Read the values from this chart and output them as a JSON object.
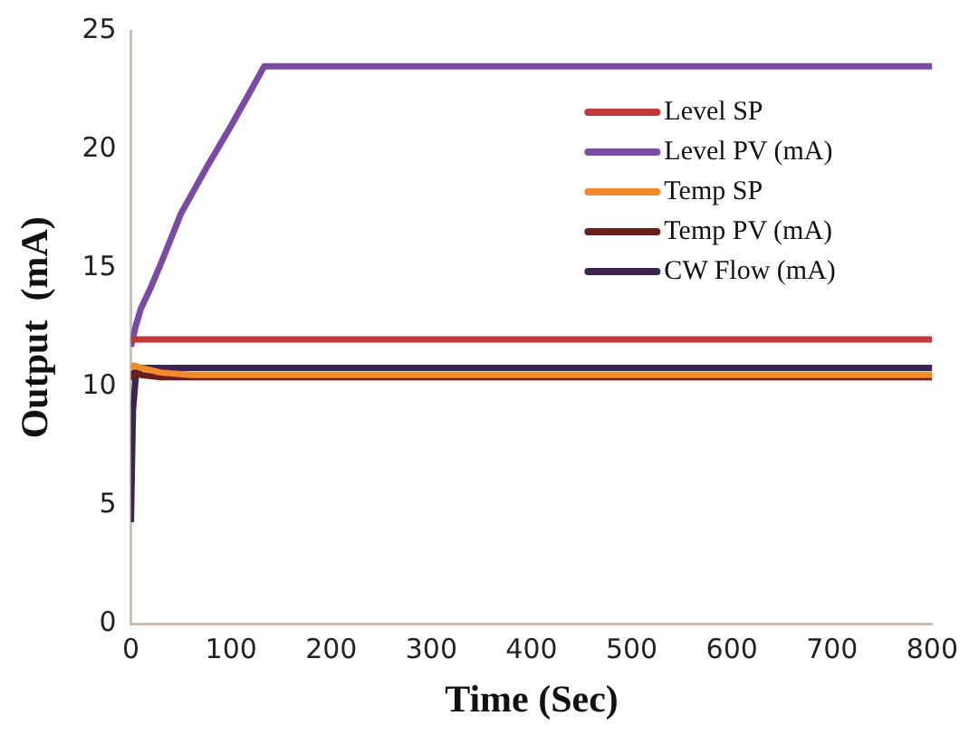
{
  "chart_data": {
    "type": "line",
    "xlabel": "Time (Sec)",
    "ylabel": "Output  (mA)",
    "xlim": [
      0,
      800
    ],
    "xticks": [
      0,
      100,
      200,
      300,
      400,
      500,
      600,
      700,
      800
    ],
    "ylim": [
      0,
      25
    ],
    "yticks": [
      0,
      5,
      10,
      15,
      20,
      25
    ],
    "grid": false,
    "legend": "top right",
    "marker": "none",
    "line_style": "solid",
    "series": [
      {
        "name": "Level SP",
        "color": "#c0393b",
        "x": [
          0,
          800
        ],
        "values": [
          12,
          12
        ]
      },
      {
        "name": "Level PV (mA)",
        "color": "#7b4ba3",
        "x": [
          0,
          5,
          10,
          20,
          30,
          50,
          75,
          100,
          120,
          133,
          800
        ],
        "values": [
          11.7,
          12.6,
          13.3,
          14.2,
          15.2,
          17.3,
          19.2,
          21,
          22.5,
          23.5,
          23.5
        ]
      },
      {
        "name": "Temp SP",
        "color": "#f08a2c",
        "x": [
          0,
          3,
          10,
          30,
          60,
          800
        ],
        "values": [
          10.8,
          10.9,
          10.8,
          10.6,
          10.5,
          10.5
        ]
      },
      {
        "name": "Temp PV (mA)",
        "color": "#6a1f1f",
        "x": [
          0,
          3,
          10,
          30,
          800
        ],
        "values": [
          10.3,
          10.6,
          10.5,
          10.4,
          10.4
        ]
      },
      {
        "name": "CW Flow (mA)",
        "color": "#3b2450",
        "x": [
          0,
          2,
          5,
          10,
          800
        ],
        "values": [
          4.3,
          9,
          10.5,
          10.8,
          10.8
        ]
      }
    ]
  }
}
